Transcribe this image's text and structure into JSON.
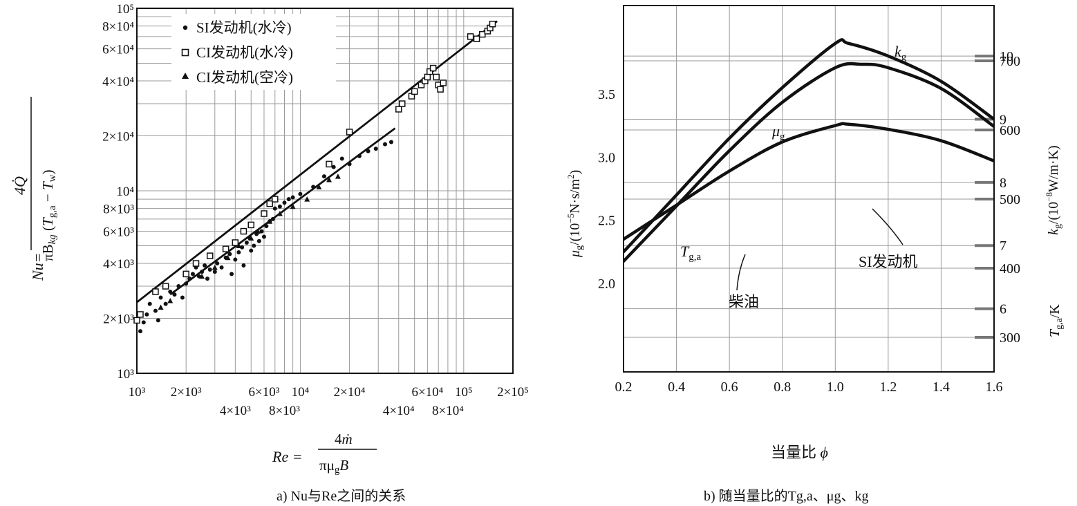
{
  "chart_data": [
    {
      "type": "scatter",
      "caption": "a) Nu与Re之间的关系",
      "xlabel": "Re = 4ṁ / πμgB",
      "ylabel": "Nu = 4Q̇ / πBkg(Tg,a − Tw)",
      "x_scale": "log",
      "y_scale": "log",
      "xlim": [
        1000,
        200000
      ],
      "ylim": [
        1000,
        100000
      ],
      "x_tick_labels": [
        {
          "value": 1000,
          "label": "10³",
          "row": 1
        },
        {
          "value": 2000,
          "label": "2×10³",
          "row": 1
        },
        {
          "value": 4000,
          "label": "4×10³",
          "row": 2
        },
        {
          "value": 6000,
          "label": "6×10³",
          "row": 1
        },
        {
          "value": 8000,
          "label": "8×10³",
          "row": 2
        },
        {
          "value": 10000,
          "label": "10⁴",
          "row": 1
        },
        {
          "value": 20000,
          "label": "2×10⁴",
          "row": 1
        },
        {
          "value": 40000,
          "label": "4×10⁴",
          "row": 2
        },
        {
          "value": 60000,
          "label": "6×10⁴",
          "row": 1
        },
        {
          "value": 80000,
          "label": "8×10⁴",
          "row": 2
        },
        {
          "value": 100000,
          "label": "10⁵",
          "row": 1
        },
        {
          "value": 200000,
          "label": "2×10⁵",
          "row": 1
        }
      ],
      "y_tick_labels": [
        {
          "value": 1000,
          "label": "10³"
        },
        {
          "value": 2000,
          "label": "2×10³"
        },
        {
          "value": 4000,
          "label": "4×10³"
        },
        {
          "value": 6000,
          "label": "6×10³"
        },
        {
          "value": 8000,
          "label": "8×10³"
        },
        {
          "value": 10000,
          "label": "10⁴"
        },
        {
          "value": 20000,
          "label": "2×10⁴"
        },
        {
          "value": 40000,
          "label": "4×10⁴"
        },
        {
          "value": 60000,
          "label": "6×10⁴"
        },
        {
          "value": 80000,
          "label": "8×10⁴"
        },
        {
          "value": 100000,
          "label": "10⁵"
        }
      ],
      "grid": true,
      "legend_position": "top-right",
      "series": [
        {
          "name": "SI发动机(水冷)",
          "marker": "dot",
          "points": [
            [
              1050,
              1700
            ],
            [
              1100,
              1900
            ],
            [
              1150,
              2100
            ],
            [
              1200,
              2400
            ],
            [
              1300,
              2200
            ],
            [
              1350,
              1950
            ],
            [
              1400,
              2600
            ],
            [
              1500,
              2400
            ],
            [
              1600,
              2800
            ],
            [
              1700,
              2700
            ],
            [
              1800,
              3000
            ],
            [
              1900,
              2600
            ],
            [
              2000,
              3100
            ],
            [
              2100,
              3300
            ],
            [
              2200,
              3500
            ],
            [
              2300,
              3800
            ],
            [
              2400,
              3400
            ],
            [
              2500,
              3600
            ],
            [
              2600,
              3900
            ],
            [
              2700,
              3300
            ],
            [
              2800,
              3700
            ],
            [
              3000,
              3600
            ],
            [
              3100,
              4000
            ],
            [
              3300,
              3800
            ],
            [
              3500,
              4300
            ],
            [
              3700,
              4500
            ],
            [
              3800,
              3500
            ],
            [
              4000,
              4200
            ],
            [
              4200,
              4600
            ],
            [
              4400,
              4900
            ],
            [
              4500,
              3900
            ],
            [
              4700,
              5200
            ],
            [
              4900,
              5500
            ],
            [
              5000,
              4700
            ],
            [
              5200,
              5000
            ],
            [
              5400,
              5800
            ],
            [
              5600,
              5300
            ],
            [
              5800,
              6000
            ],
            [
              6000,
              5600
            ],
            [
              6200,
              6400
            ],
            [
              6500,
              6800
            ],
            [
              6800,
              7000
            ],
            [
              7000,
              8000
            ],
            [
              7500,
              8200
            ],
            [
              8000,
              8600
            ],
            [
              8500,
              9000
            ],
            [
              9000,
              9200
            ],
            [
              10000,
              9600
            ],
            [
              12000,
              10500
            ],
            [
              14000,
              12000
            ],
            [
              16000,
              13500
            ],
            [
              18000,
              15000
            ],
            [
              20000,
              14000
            ],
            [
              23000,
              15500
            ],
            [
              26000,
              16500
            ],
            [
              29000,
              17000
            ],
            [
              33000,
              18000
            ],
            [
              36000,
              18500
            ]
          ]
        },
        {
          "name": "CI发动机(水冷)",
          "marker": "square",
          "points": [
            [
              1000,
              1950
            ],
            [
              1050,
              2100
            ],
            [
              1300,
              2800
            ],
            [
              1500,
              3000
            ],
            [
              2000,
              3500
            ],
            [
              2300,
              4000
            ],
            [
              2800,
              4400
            ],
            [
              3500,
              4800
            ],
            [
              4000,
              5200
            ],
            [
              4500,
              6000
            ],
            [
              5000,
              6500
            ],
            [
              6000,
              7500
            ],
            [
              6500,
              8500
            ],
            [
              7000,
              9000
            ],
            [
              15000,
              14000
            ],
            [
              20000,
              21000
            ],
            [
              40000,
              28000
            ],
            [
              42000,
              30000
            ],
            [
              48000,
              33000
            ],
            [
              50000,
              35000
            ],
            [
              55000,
              38000
            ],
            [
              58000,
              40000
            ],
            [
              60000,
              42000
            ],
            [
              62000,
              45000
            ],
            [
              65000,
              47000
            ],
            [
              68000,
              42000
            ],
            [
              70000,
              38000
            ],
            [
              72000,
              36000
            ],
            [
              75000,
              39000
            ],
            [
              110000,
              70000
            ],
            [
              120000,
              68000
            ],
            [
              130000,
              72000
            ],
            [
              140000,
              75000
            ],
            [
              145000,
              78000
            ],
            [
              150000,
              82000
            ]
          ]
        },
        {
          "name": "CI发动机(空冷)",
          "marker": "triangle",
          "points": [
            [
              1400,
              2300
            ],
            [
              1600,
              2500
            ],
            [
              2500,
              3400
            ],
            [
              3000,
              3800
            ],
            [
              3600,
              4300
            ],
            [
              4200,
              5000
            ],
            [
              5000,
              5500
            ],
            [
              5500,
              6000
            ],
            [
              6500,
              6800
            ],
            [
              7500,
              7500
            ],
            [
              9000,
              8200
            ],
            [
              11000,
              9000
            ],
            [
              13000,
              10500
            ],
            [
              15000,
              11500
            ],
            [
              17000,
              12000
            ]
          ]
        }
      ],
      "fit_lines": [
        {
          "name": "CI fit",
          "from": [
            1000,
            2450
          ],
          "to": [
            160000,
            85000
          ]
        },
        {
          "name": "SI fit",
          "from": [
            1600,
            2700
          ],
          "to": [
            38000,
            22000
          ]
        }
      ]
    },
    {
      "type": "line",
      "caption": "b) 随当量比的Tg,a、μg、kg",
      "xlabel": "当量比 φ",
      "ylabel_left": "μg/(10⁻⁵N·s/m²)",
      "ylabel_right_upper": "kg/(10⁻⁸W/m·K)",
      "ylabel_right_lower": "Tg,a/K",
      "xlim": [
        0.2,
        1.6
      ],
      "x_ticks": [
        "0.2",
        "0.4",
        "0.6",
        "0.8",
        "1.0",
        "1.2",
        "1.4",
        "1.6"
      ],
      "x_tick_values": [
        0.2,
        0.4,
        0.6,
        0.8,
        1.0,
        1.2,
        1.4,
        1.6
      ],
      "left_axis": {
        "range": [
          1.3,
          4.2
        ],
        "ticks": [
          2.0,
          2.5,
          3.0,
          3.5
        ],
        "tick_labels": [
          "2.0",
          "2.5",
          "3.0",
          "3.5"
        ]
      },
      "right_axis_k": {
        "range": [
          5.0,
          10.8
        ],
        "ticks": [
          6,
          7,
          8,
          9,
          10
        ],
        "tick_labels": [
          "6",
          "7",
          "8",
          "9",
          "10"
        ]
      },
      "right_axis_T": {
        "range": [
          250,
          780
        ],
        "ticks": [
          300,
          400,
          500,
          600,
          700
        ],
        "tick_labels": [
          "300",
          "400",
          "500",
          "600",
          "700"
        ]
      },
      "grid": true,
      "series": [
        {
          "name": "kg",
          "axis": "right_axis_k",
          "x": [
            0.2,
            0.4,
            0.6,
            0.8,
            1.0,
            1.05,
            1.2,
            1.4,
            1.6
          ],
          "values": [
            6.9,
            7.8,
            8.7,
            9.5,
            10.2,
            10.2,
            10.0,
            9.6,
            9.0
          ]
        },
        {
          "name": "μg",
          "axis": "left_axis",
          "x": [
            0.2,
            0.4,
            0.6,
            0.8,
            1.0,
            1.05,
            1.2,
            1.4,
            1.6
          ],
          "values": [
            2.35,
            2.62,
            2.89,
            3.12,
            3.25,
            3.26,
            3.22,
            3.13,
            2.97
          ]
        },
        {
          "name": "Tg,a",
          "axis": "right_axis_T",
          "x": [
            0.2,
            0.4,
            0.6,
            0.8,
            1.0,
            1.1,
            1.2,
            1.4,
            1.6
          ],
          "values": [
            410,
            490,
            570,
            640,
            690,
            695,
            690,
            660,
            605
          ]
        }
      ],
      "annotations": {
        "label_kg": "kg",
        "label_mu": "μg",
        "label_T": "Tg,a",
        "diesel": "柴油",
        "si_engine": "SI发动机"
      }
    }
  ]
}
